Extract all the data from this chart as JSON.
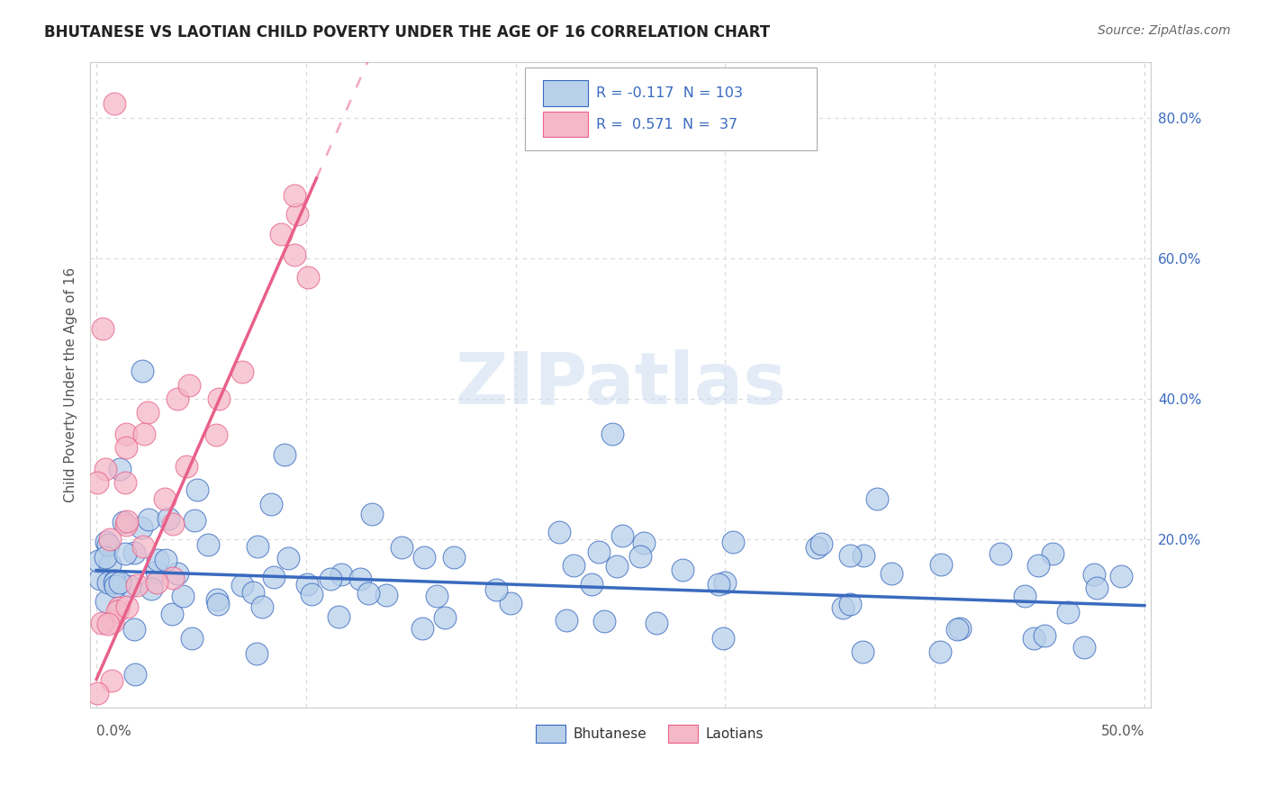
{
  "title": "BHUTANESE VS LAOTIAN CHILD POVERTY UNDER THE AGE OF 16 CORRELATION CHART",
  "source": "Source: ZipAtlas.com",
  "ylabel": "Child Poverty Under the Age of 16",
  "ylabel_right_ticks": [
    "80.0%",
    "60.0%",
    "40.0%",
    "20.0%"
  ],
  "ylabel_right_values": [
    0.8,
    0.6,
    0.4,
    0.2
  ],
  "xmin": 0.0,
  "xmax": 0.5,
  "ymin": -0.04,
  "ymax": 0.88,
  "blue_R": -0.117,
  "blue_N": 103,
  "pink_R": 0.571,
  "pink_N": 37,
  "blue_color": "#b8d0ea",
  "pink_color": "#f4b8c8",
  "blue_line_color": "#3a6abf",
  "pink_line_color": "#e8608a",
  "watermark": "ZIPatlas",
  "legend_label_blue": "Bhutanese",
  "legend_label_pink": "Laotians",
  "grid_color": "#d8d8d8",
  "background_color": "#ffffff",
  "blue_intercept": 0.155,
  "blue_slope": -0.1,
  "pink_intercept": 0.0,
  "pink_slope": 6.8,
  "pink_line_x_solid_end": 0.105,
  "pink_line_x_dashed_end": 0.38,
  "xtick_positions": [
    0.0,
    0.1,
    0.2,
    0.3,
    0.4,
    0.5
  ]
}
